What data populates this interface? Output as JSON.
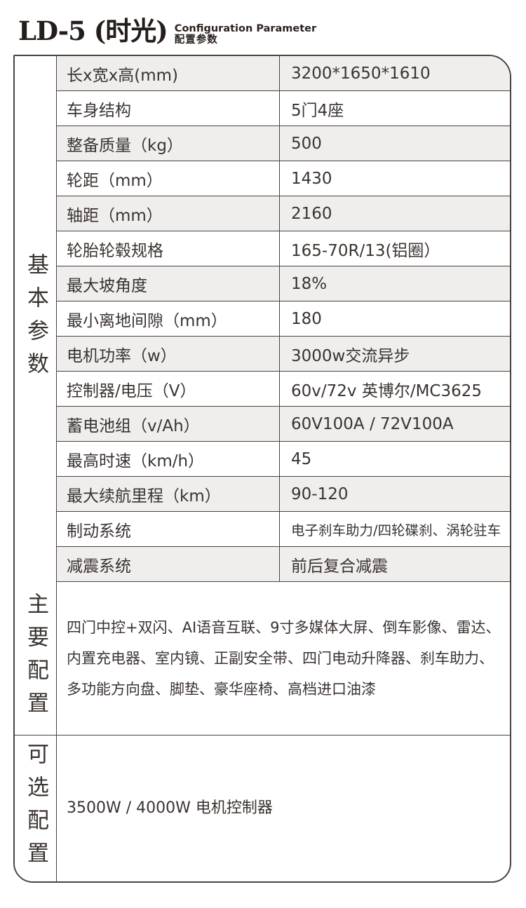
{
  "header": {
    "model": "LD-5 (时光)",
    "subtitle_en": "Configuration Parameter",
    "subtitle_cn": "配置参数"
  },
  "table": {
    "sections": [
      {
        "category": "基本参数",
        "rows": [
          {
            "label": "长x宽x高(mm)",
            "value": "3200*1650*1610"
          },
          {
            "label": "车身结构",
            "value": "5门4座"
          },
          {
            "label": "整备质量（kg）",
            "value": "500"
          },
          {
            "label": "轮距（mm）",
            "value": "1430"
          },
          {
            "label": "轴距（mm）",
            "value": "2160"
          },
          {
            "label": "轮胎轮毂规格",
            "value": "165-70R/13(铝圈）"
          },
          {
            "label": "最大坡角度",
            "value": "18%"
          },
          {
            "label": "最小离地间隙（mm）",
            "value": "180"
          },
          {
            "label": "电机功率（w）",
            "value": "3000w交流异步"
          },
          {
            "label": "控制器/电压（V）",
            "value": "60v/72v 英博尔/MC3625"
          },
          {
            "label": "蓄电池组（v/Ah）",
            "value": "60V100A / 72V100A"
          },
          {
            "label": "最高时速（km/h）",
            "value": "45"
          },
          {
            "label": "最大续航里程（km）",
            "value": "90-120"
          },
          {
            "label": "制动系统",
            "value": "电子刹车助力/四轮碟刹、涡轮驻车"
          },
          {
            "label": "减震系统",
            "value": "前后复合减震"
          }
        ]
      },
      {
        "category": "主要配置",
        "lines": [
          "四门中控+双闪、AI语音互联、9寸多媒体大屏、倒车影像、雷达、",
          "内置充电器、室内镜、正副安全带、四门电动升降器、刹车助力、",
          "多功能方向盘、脚垫、豪华座椅、高档进口油漆"
        ]
      },
      {
        "category": "可选配置",
        "content": "3500W / 4000W 电机控制器"
      }
    ]
  },
  "colors": {
    "border": "#4a423f",
    "row_alt": "#f0eeec",
    "text": "#3a3330",
    "title": "#241d1a"
  }
}
